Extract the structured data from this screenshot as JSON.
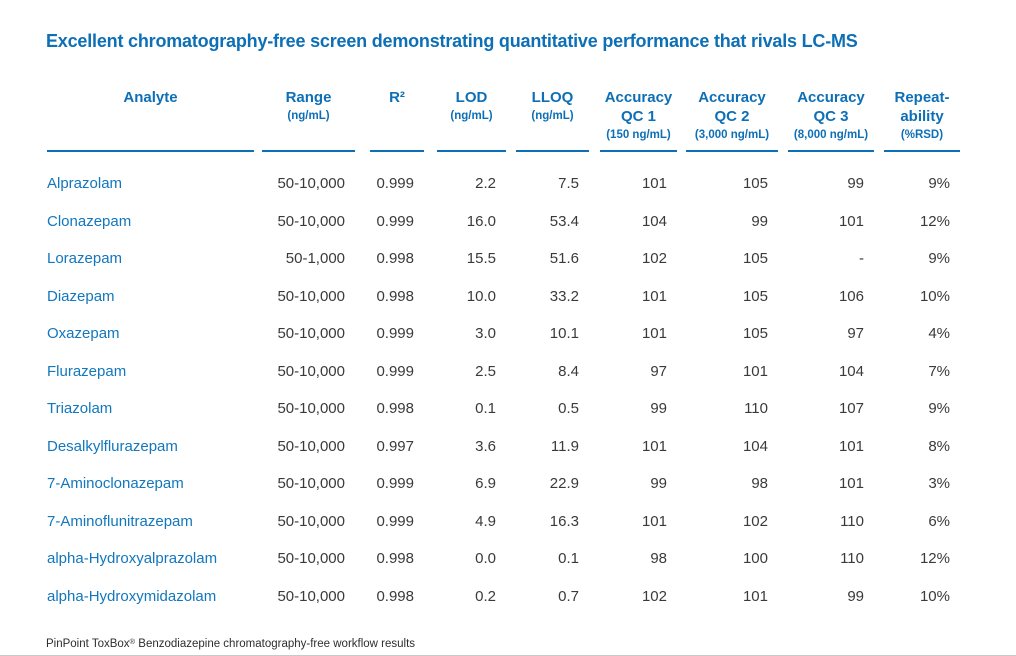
{
  "page": {
    "title": "Excellent chromatography-free screen demonstrating quantitative performance that rivals LC-MS",
    "footer": {
      "product": "PinPoint ToxBox",
      "reg_mark": "®",
      "rest": " Benzodiazepine  chromatography-free workflow results"
    }
  },
  "colors": {
    "accent_blue": "#0d6fb6",
    "analyte_blue": "#1277bd",
    "data_text": "#3a3a3a",
    "bottom_rule": "#c9c9c9"
  },
  "table": {
    "columns": [
      {
        "label": "Analyte",
        "sub": ""
      },
      {
        "label": "Range",
        "sub": "(ng/mL)"
      },
      {
        "label": "R²",
        "sub": ""
      },
      {
        "label": "LOD",
        "sub": "(ng/mL)"
      },
      {
        "label": "LLOQ",
        "sub": "(ng/mL)"
      },
      {
        "label": "Accuracy QC 1",
        "sub": "(150 ng/mL)"
      },
      {
        "label": "Accuracy QC 2",
        "sub": "(3,000 ng/mL)"
      },
      {
        "label": "Accuracy QC 3",
        "sub": "(8,000 ng/mL)"
      },
      {
        "label": "Repeat-ability",
        "sub": "(%RSD)"
      }
    ],
    "rows": [
      {
        "analyte": "Alprazolam",
        "range": "50-10,000",
        "r2": "0.999",
        "lod": "2.2",
        "lloq": "7.5",
        "qc1": "101",
        "qc2": "105",
        "qc3": "99",
        "rsd": "9%"
      },
      {
        "analyte": "Clonazepam",
        "range": "50-10,000",
        "r2": "0.999",
        "lod": "16.0",
        "lloq": "53.4",
        "qc1": "104",
        "qc2": "99",
        "qc3": "101",
        "rsd": "12%"
      },
      {
        "analyte": "Lorazepam",
        "range": "50-1,000",
        "r2": "0.998",
        "lod": "15.5",
        "lloq": "51.6",
        "qc1": "102",
        "qc2": "105",
        "qc3": "-",
        "rsd": "9%"
      },
      {
        "analyte": "Diazepam",
        "range": "50-10,000",
        "r2": "0.998",
        "lod": "10.0",
        "lloq": "33.2",
        "qc1": "101",
        "qc2": "105",
        "qc3": "106",
        "rsd": "10%"
      },
      {
        "analyte": "Oxazepam",
        "range": "50-10,000",
        "r2": "0.999",
        "lod": "3.0",
        "lloq": "10.1",
        "qc1": "101",
        "qc2": "105",
        "qc3": "97",
        "rsd": "4%"
      },
      {
        "analyte": "Flurazepam",
        "range": "50-10,000",
        "r2": "0.999",
        "lod": "2.5",
        "lloq": "8.4",
        "qc1": "97",
        "qc2": "101",
        "qc3": "104",
        "rsd": "7%"
      },
      {
        "analyte": "Triazolam",
        "range": "50-10,000",
        "r2": "0.998",
        "lod": "0.1",
        "lloq": "0.5",
        "qc1": "99",
        "qc2": "110",
        "qc3": "107",
        "rsd": "9%"
      },
      {
        "analyte": "Desalkylflurazepam",
        "range": "50-10,000",
        "r2": "0.997",
        "lod": "3.6",
        "lloq": "11.9",
        "qc1": "101",
        "qc2": "104",
        "qc3": "101",
        "rsd": "8%"
      },
      {
        "analyte": "7-Aminoclonazepam",
        "range": "50-10,000",
        "r2": "0.999",
        "lod": "6.9",
        "lloq": "22.9",
        "qc1": "99",
        "qc2": "98",
        "qc3": "101",
        "rsd": "3%"
      },
      {
        "analyte": "7-Aminoflunitrazepam",
        "range": "50-10,000",
        "r2": "0.999",
        "lod": "4.9",
        "lloq": "16.3",
        "qc1": "101",
        "qc2": "102",
        "qc3": "110",
        "rsd": "6%"
      },
      {
        "analyte": "alpha-Hydroxyalprazolam",
        "range": "50-10,000",
        "r2": "0.998",
        "lod": "0.0",
        "lloq": "0.1",
        "qc1": "98",
        "qc2": "100",
        "qc3": "110",
        "rsd": "12%"
      },
      {
        "analyte": "alpha-Hydroxymidazolam",
        "range": "50-10,000",
        "r2": "0.998",
        "lod": "0.2",
        "lloq": "0.7",
        "qc1": "102",
        "qc2": "101",
        "qc3": "99",
        "rsd": "10%"
      }
    ]
  }
}
